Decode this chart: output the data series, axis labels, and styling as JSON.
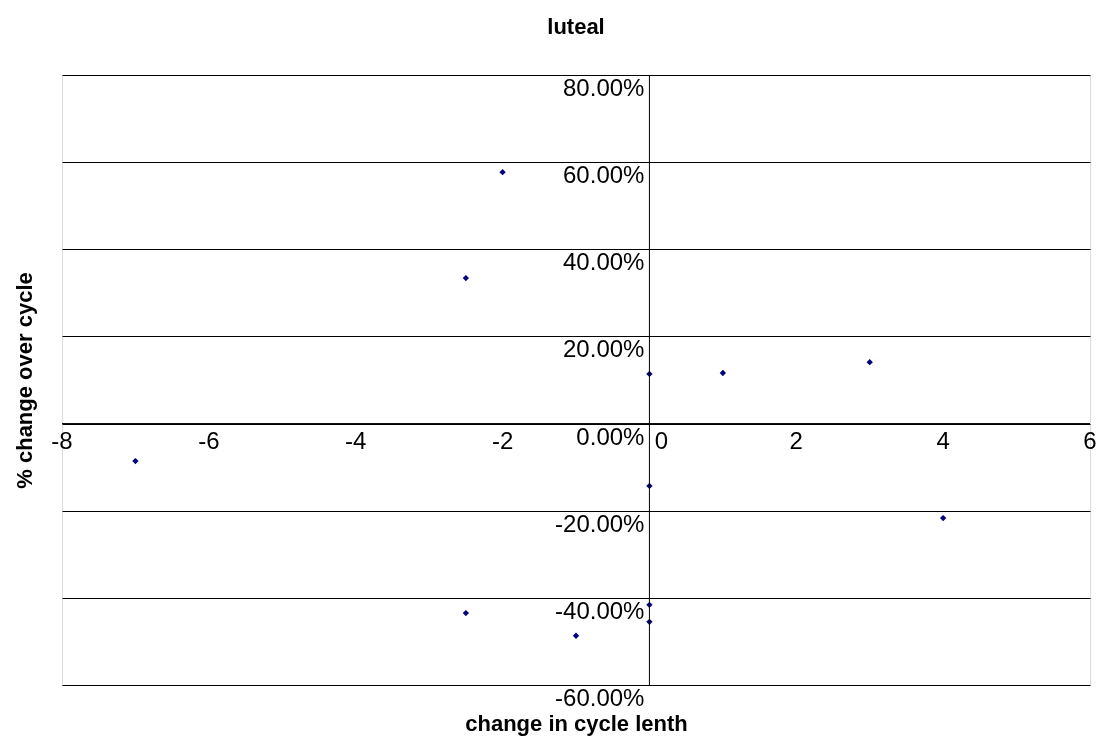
{
  "chart_data": {
    "type": "scatter",
    "title": "luteal",
    "xlabel": "change in cycle lenth",
    "ylabel": "% change over cycle",
    "x": [
      -7,
      -2,
      -2.5,
      0,
      1,
      3,
      0,
      4,
      -2.5,
      -1,
      0,
      0
    ],
    "series": [
      {
        "color": "#000080",
        "values": [
          -8.6,
          57.7,
          33.4,
          11.4,
          11.6,
          14.1,
          -14.3,
          -21.7,
          -43.5,
          -48.7,
          -41.6,
          -45.5
        ]
      }
    ],
    "xlim": [
      -8,
      6
    ],
    "xticks": [
      -8,
      -6,
      -4,
      -2,
      0,
      2,
      4,
      6
    ],
    "ylim": [
      -60,
      80
    ],
    "yticks": [
      {
        "value": -60,
        "label": "-60.00%"
      },
      {
        "value": -40,
        "label": "-40.00%"
      },
      {
        "value": -20,
        "label": "-20.00%"
      },
      {
        "value": 0,
        "label": "0.00%"
      },
      {
        "value": 20,
        "label": "20.00%"
      },
      {
        "value": 40,
        "label": "40.00%"
      },
      {
        "value": 60,
        "label": "60.00%"
      },
      {
        "value": 80,
        "label": "80.00%"
      }
    ],
    "grid": "y",
    "marker": "diamond"
  }
}
